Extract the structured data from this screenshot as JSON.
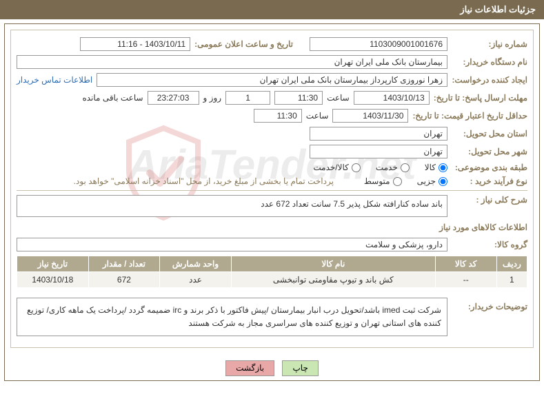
{
  "header": {
    "title": "جزئیات اطلاعات نیاز"
  },
  "fields": {
    "need_no_label": "شماره نیاز:",
    "need_no": "1103009001001676",
    "announce_dt_label": "تاریخ و ساعت اعلان عمومی:",
    "announce_dt": "1403/10/11 - 11:16",
    "buyer_org_label": "نام دستگاه خریدار:",
    "buyer_org": "بیمارستان بانک ملی ایران تهران",
    "creator_label": "ایجاد کننده درخواست:",
    "creator": "زهرا نوروزی کارپرداز بیمارستان بانک ملی ایران تهران",
    "contact_link": "اطلاعات تماس خریدار",
    "resp_deadline_label": "مهلت ارسال پاسخ: تا تاریخ:",
    "resp_date": "1403/10/13",
    "time_label": "ساعت",
    "resp_time": "11:30",
    "days_val": "1",
    "days_suffix": "روز و",
    "countdown": "23:27:03",
    "remaining_label": "ساعت باقی مانده",
    "validity_label": "حداقل تاریخ اعتبار قیمت: تا تاریخ:",
    "validity_date": "1403/11/30",
    "validity_time": "11:30",
    "province_label": "استان محل تحویل:",
    "province": "تهران",
    "city_label": "شهر محل تحویل:",
    "city": "تهران",
    "category_label": "طبقه بندی موضوعی:",
    "cat_goods": "کالا",
    "cat_service": "خدمت",
    "cat_both": "کالا/خدمت",
    "process_label": "نوع فرآیند خرید :",
    "proc_small": "جزیی",
    "proc_medium": "متوسط",
    "payment_note": "پرداخت تمام یا بخشی از مبلغ خرید، از محل \"اسناد خزانه اسلامی\" خواهد بود.",
    "summary_label": "شرح کلی نیاز :",
    "summary": "باند  ساده  کنارافته  شکل پذیر 7.5 سانت تعداد 672 عدد",
    "items_section": "اطلاعات کالاهای مورد نیاز",
    "group_label": "گروه کالا:",
    "group": "دارو، پزشکی و سلامت",
    "buyer_desc_label": "توضیحات خریدار:",
    "buyer_desc": "شرکت ثبت imed باشد/تحویل درب انبار بیمارستان /پیش فاکتور با ذکر برند و irc ضمیمه گردد /پرداخت یک ماهه کاری/ توزیع کننده های استانی تهران و توزیع کننده های سراسری مجاز به شرکت هستند"
  },
  "table": {
    "headers": [
      "ردیف",
      "کد کالا",
      "نام کالا",
      "واحد شمارش",
      "تعداد / مقدار",
      "تاریخ نیاز"
    ],
    "rows": [
      [
        "1",
        "--",
        "کش باند و تیوپ مقاومتی توانبخشی",
        "عدد",
        "672",
        "1403/10/18"
      ]
    ],
    "col_widths": [
      "6%",
      "12%",
      "40%",
      "14%",
      "14%",
      "14%"
    ]
  },
  "buttons": {
    "print": "چاپ",
    "back": "بازگشت"
  },
  "colors": {
    "header_bg": "#7a6a4f",
    "label_color": "#8a7a5a",
    "th_bg": "#b0a88f",
    "td_bg": "#f4f2ec",
    "link": "#2a6db5"
  }
}
